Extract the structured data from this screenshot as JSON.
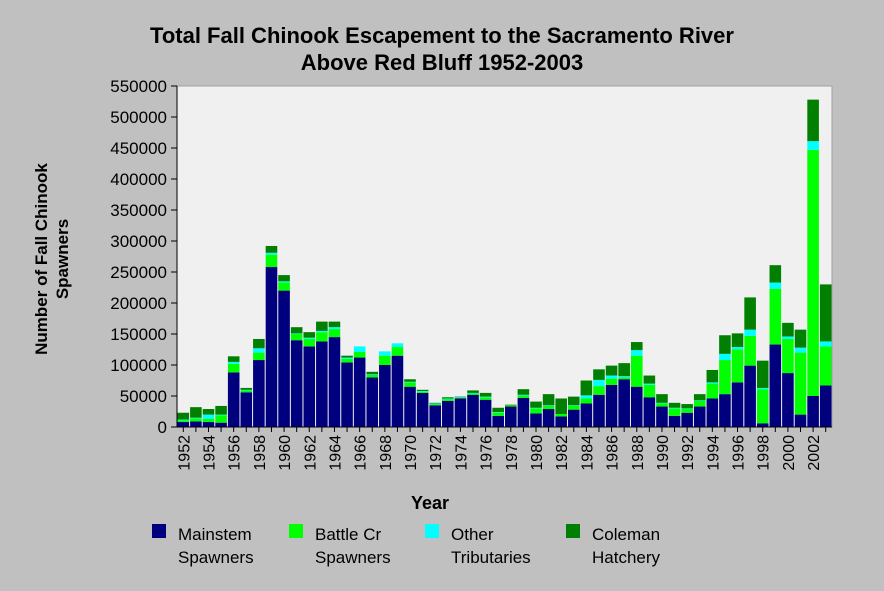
{
  "colors": {
    "background": "#c0c0c0",
    "plot_background": "#f0f0f0",
    "mainstem": "#00007f",
    "battle": "#00ff00",
    "other": "#00ffff",
    "coleman": "#007f00"
  },
  "chart_data": {
    "type": "bar",
    "stacked": true,
    "title": [
      "Total Fall Chinook Escapement to the Sacramento River",
      "Above Red Bluff 1952-2003"
    ],
    "xlabel": "Year",
    "ylabel": [
      "Number of Fall Chinook",
      "Spawners"
    ],
    "ylim": [
      0,
      550000
    ],
    "yticks": [
      "0",
      "50000",
      "100000",
      "150000",
      "200000",
      "250000",
      "300000",
      "350000",
      "400000",
      "450000",
      "500000",
      "550000"
    ],
    "xtick_labels": [
      "1952",
      "1954",
      "1956",
      "1958",
      "1960",
      "1962",
      "1964",
      "1966",
      "1968",
      "1970",
      "1972",
      "1974",
      "1976",
      "1978",
      "1980",
      "1982",
      "1984",
      "1986",
      "1988",
      "1990",
      "1992",
      "1994",
      "1996",
      "1998",
      "2000",
      "2002"
    ],
    "categories": [
      "1952",
      "1953",
      "1954",
      "1955",
      "1956",
      "1957",
      "1958",
      "1959",
      "1960",
      "1961",
      "1962",
      "1963",
      "1964",
      "1965",
      "1966",
      "1967",
      "1968",
      "1969",
      "1970",
      "1971",
      "1972",
      "1973",
      "1974",
      "1975",
      "1976",
      "1977",
      "1978",
      "1979",
      "1980",
      "1981",
      "1982",
      "1983",
      "1984",
      "1985",
      "1986",
      "1987",
      "1988",
      "1989",
      "1990",
      "1991",
      "1992",
      "1993",
      "1994",
      "1995",
      "1996",
      "1997",
      "1998",
      "1999",
      "2000",
      "2001",
      "2002",
      "2003"
    ],
    "series": [
      {
        "name": [
          "Mainstem",
          "Spawners"
        ],
        "color_key": "mainstem",
        "values": [
          8000,
          9000,
          8000,
          7000,
          88000,
          56000,
          108000,
          258000,
          220000,
          140000,
          130000,
          138000,
          145000,
          104000,
          112000,
          80000,
          100000,
          115000,
          65000,
          55000,
          35000,
          42000,
          46000,
          52000,
          44000,
          18000,
          33000,
          47000,
          22000,
          29000,
          17000,
          28000,
          38000,
          52000,
          68000,
          77000,
          65000,
          48000,
          33000,
          18000,
          23000,
          33000,
          46000,
          53000,
          72000,
          99000,
          6000,
          133000,
          87000,
          20000,
          50000,
          67000
        ]
      },
      {
        "name": [
          "Battle Cr",
          "Spawners"
        ],
        "color_key": "battle",
        "values": [
          3000,
          5000,
          5000,
          12000,
          14000,
          3000,
          12000,
          20000,
          13000,
          10000,
          12000,
          15000,
          13000,
          6000,
          9000,
          4000,
          15000,
          14000,
          7000,
          2000,
          2000,
          3000,
          1000,
          2000,
          4000,
          5000,
          2000,
          4000,
          8000,
          5000,
          4000,
          6000,
          8000,
          14000,
          10000,
          3000,
          50000,
          20000,
          5000,
          12000,
          6000,
          9000,
          24000,
          55000,
          53000,
          48000,
          55000,
          90000,
          55000,
          100000,
          397000,
          63000
        ]
      },
      {
        "name": [
          "Other",
          "Tributaries"
        ],
        "color_key": "other",
        "values": [
          1000,
          1000,
          7000,
          1000,
          3000,
          1000,
          7000,
          3000,
          2000,
          1000,
          2000,
          2000,
          3000,
          2000,
          9000,
          1000,
          7000,
          6000,
          1000,
          1000,
          1000,
          1000,
          1000,
          1000,
          1000,
          1000,
          0,
          1000,
          1000,
          1000,
          0,
          1000,
          5000,
          10000,
          5000,
          2000,
          9000,
          2000,
          1000,
          1000,
          1000,
          1000,
          2000,
          10000,
          4000,
          10000,
          2000,
          10000,
          4000,
          8000,
          14000,
          8000
        ]
      },
      {
        "name": [
          "Coleman",
          "Hatchery"
        ],
        "color_key": "coleman",
        "values": [
          11000,
          17000,
          9000,
          14000,
          9000,
          3000,
          15000,
          11000,
          10000,
          10000,
          9000,
          15000,
          9000,
          3000,
          0,
          4000,
          0,
          0,
          4000,
          2000,
          1000,
          2000,
          1000,
          4000,
          6000,
          7000,
          1000,
          9000,
          10000,
          18000,
          25000,
          14000,
          24000,
          17000,
          16000,
          21000,
          13000,
          13000,
          14000,
          8000,
          7000,
          10000,
          20000,
          30000,
          22000,
          52000,
          44000,
          28000,
          22000,
          29000,
          67000,
          92000
        ]
      }
    ],
    "legend_placement": "bottom",
    "grid": false
  }
}
